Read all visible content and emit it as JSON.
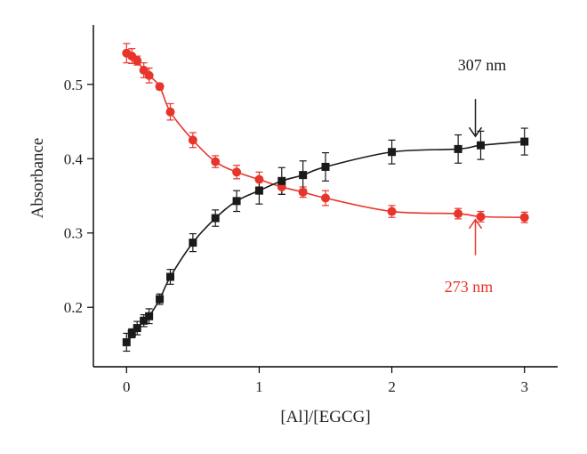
{
  "chart_data": {
    "type": "scatter",
    "title": "",
    "xlabel": "[Al]/[EGCG]",
    "ylabel": "Absorbance",
    "xlim": [
      -0.25,
      3.25
    ],
    "ylim": [
      0.12,
      0.58
    ],
    "x_ticks": [
      0,
      1,
      2,
      3
    ],
    "y_ticks": [
      0.2,
      0.3,
      0.4,
      0.5
    ],
    "x_tick_labels": [
      "0",
      "1",
      "2",
      "3"
    ],
    "y_tick_labels": [
      "0.2",
      "0.3",
      "0.4",
      "0.5"
    ],
    "grid": false,
    "series": [
      {
        "color": "#e8352b",
        "marker": "circle",
        "x": [
          0,
          0.04,
          0.08,
          0.13,
          0.17,
          0.25,
          0.33,
          0.5,
          0.67,
          0.83,
          1.0,
          1.17,
          1.33,
          1.5,
          2.0,
          2.5,
          2.67,
          3.0
        ],
        "y": [
          0.542,
          0.538,
          0.532,
          0.519,
          0.512,
          0.497,
          0.463,
          0.425,
          0.396,
          0.382,
          0.372,
          0.362,
          0.355,
          0.347,
          0.329,
          0.326,
          0.322,
          0.321
        ],
        "err": [
          0.013,
          0.01,
          0.006,
          0.01,
          0.01,
          0.004,
          0.011,
          0.01,
          0.008,
          0.009,
          0.01,
          0.01,
          0.007,
          0.01,
          0.008,
          0.007,
          0.007,
          0.007
        ],
        "fit": "decreasing sigmoid"
      },
      {
        "color": "#1a1a1a",
        "marker": "square",
        "x": [
          0,
          0.04,
          0.08,
          0.13,
          0.17,
          0.25,
          0.33,
          0.5,
          0.67,
          0.83,
          1.0,
          1.17,
          1.33,
          1.5,
          2.0,
          2.5,
          2.67,
          3.0
        ],
        "y": [
          0.153,
          0.165,
          0.172,
          0.182,
          0.188,
          0.211,
          0.241,
          0.287,
          0.32,
          0.343,
          0.357,
          0.37,
          0.378,
          0.389,
          0.409,
          0.413,
          0.418,
          0.423
        ],
        "err": [
          0.012,
          0.006,
          0.009,
          0.008,
          0.01,
          0.007,
          0.01,
          0.012,
          0.011,
          0.014,
          0.018,
          0.018,
          0.019,
          0.019,
          0.016,
          0.019,
          0.019,
          0.018
        ],
        "fit": "increasing sigmoid"
      }
    ],
    "annotations": [
      {
        "text": "307 nm",
        "color": "#1a1a1a",
        "points_to": {
          "x": 2.63,
          "y": 0.43
        },
        "direction": "down"
      },
      {
        "text": "273 nm",
        "color": "#e8352b",
        "points_to": {
          "x": 2.63,
          "y": 0.318
        },
        "direction": "up"
      }
    ]
  }
}
